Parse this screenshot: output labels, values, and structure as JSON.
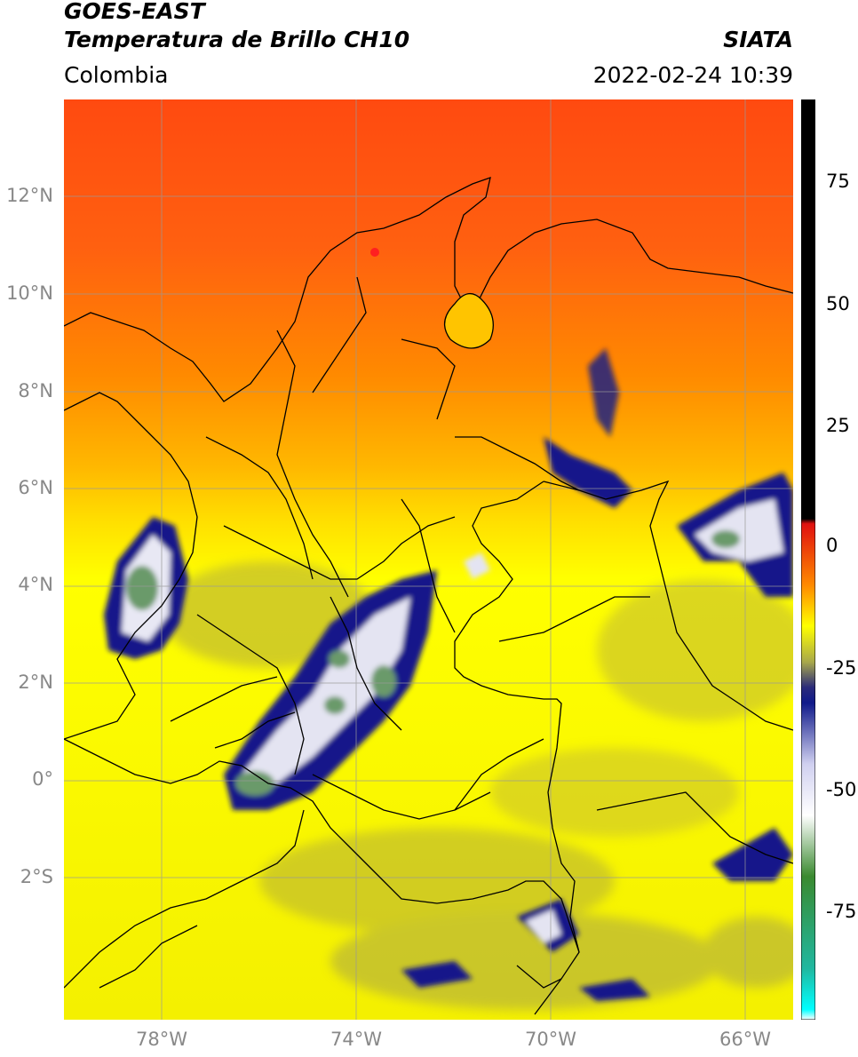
{
  "header": {
    "satellite": "GOES-EAST",
    "product": "Temperatura de Brillo CH10",
    "region": "Colombia",
    "organization": "SIATA",
    "datetime": "2022-02-24 10:39"
  },
  "axes": {
    "lat_labels": [
      "12°N",
      "10°N",
      "8°N",
      "6°N",
      "4°N",
      "2°N",
      "0°",
      "2°S"
    ],
    "lon_labels": [
      "78°W",
      "74°W",
      "70°W",
      "66°W"
    ]
  },
  "colorbar": {
    "labels": [
      "75",
      "50",
      "25",
      "0",
      "-25",
      "-50",
      "-75"
    ],
    "stops": [
      {
        "v": 90,
        "c": "#000000"
      },
      {
        "v": 8,
        "c": "#000000"
      },
      {
        "v": 7,
        "c": "#e01010"
      },
      {
        "v": -5,
        "c": "#ff8a00"
      },
      {
        "v": -13,
        "c": "#ffff00"
      },
      {
        "v": -20,
        "c": "#a9a94a"
      },
      {
        "v": -25,
        "c": "#2b2b7a"
      },
      {
        "v": -28,
        "c": "#101a8a"
      },
      {
        "v": -40,
        "c": "#d0d0f0"
      },
      {
        "v": -50,
        "c": "#ffffff"
      },
      {
        "v": -62,
        "c": "#3a8a30"
      },
      {
        "v": -80,
        "c": "#20b8a0"
      },
      {
        "v": -88,
        "c": "#00ffff"
      },
      {
        "v": -90,
        "c": "#ffffff"
      }
    ]
  },
  "colors": {
    "warm": "#ff5a10",
    "mid": "#ffab00",
    "cold_yellow": "#ffff00",
    "cloud_dark": "#14198a",
    "cloud_white": "#f0f0f8",
    "cloud_green": "#6a9a6a",
    "border": "#000000",
    "grid": "#999999"
  }
}
